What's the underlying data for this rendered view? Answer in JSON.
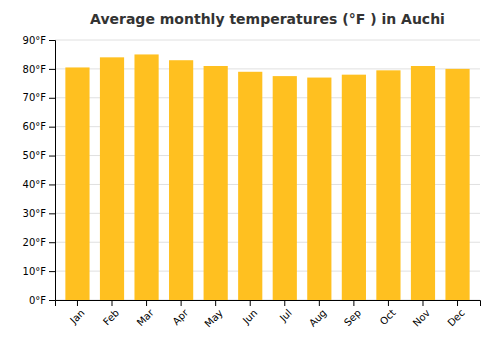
{
  "chart_data": {
    "type": "bar",
    "title": "Average monthly temperatures (°F ) in Auchi",
    "categories": [
      "Jan",
      "Feb",
      "Mar",
      "Apr",
      "May",
      "Jun",
      "Jul",
      "Aug",
      "Sep",
      "Oct",
      "Nov",
      "Dec"
    ],
    "values": [
      80.5,
      84.0,
      85.0,
      83.0,
      81.0,
      79.0,
      77.5,
      77.0,
      78.0,
      79.5,
      81.0,
      80.0
    ],
    "color": "#FFC020",
    "ylim": [
      0,
      90
    ],
    "yticks": [
      {
        "value": 0,
        "label": "0°F"
      },
      {
        "value": 10,
        "label": "10°F"
      },
      {
        "value": 20,
        "label": "20°F"
      },
      {
        "value": 30,
        "label": "30°F"
      },
      {
        "value": 40,
        "label": "40°F"
      },
      {
        "value": 50,
        "label": "50°F"
      },
      {
        "value": 60,
        "label": "60°F"
      },
      {
        "value": 70,
        "label": "70°F"
      },
      {
        "value": 80,
        "label": "80°F"
      },
      {
        "value": 90,
        "label": "90°F"
      }
    ],
    "grid": true
  }
}
